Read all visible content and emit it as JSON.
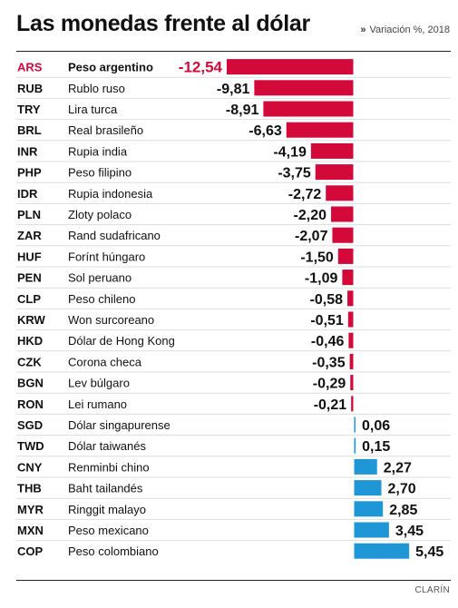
{
  "header": {
    "title": "Las monedas frente al dólar",
    "subtitle_mark": "»",
    "subtitle": "Variación %, 2018"
  },
  "footer": {
    "source": "CLARÍN"
  },
  "colors": {
    "highlight": "#d3093a",
    "negative": "#d3093a",
    "positive": "#1f96d6",
    "divider": "#dddddd",
    "text": "#111111"
  },
  "chart_data": {
    "type": "bar",
    "orientation": "horizontal",
    "title": "Las monedas frente al dólar",
    "subtitle": "Variación %, 2018",
    "highlight_code": "ARS",
    "categories": [
      "ARS",
      "RUB",
      "TRY",
      "BRL",
      "INR",
      "PHP",
      "IDR",
      "PLN",
      "ZAR",
      "HUF",
      "PEN",
      "CLP",
      "KRW",
      "HKD",
      "CZK",
      "BGN",
      "RON",
      "SGD",
      "TWD",
      "CNY",
      "THB",
      "MYR",
      "MXN",
      "COP"
    ],
    "names": [
      "Peso argentino",
      "Rublo ruso",
      "Lira turca",
      "Real brasileño",
      "Rupia india",
      "Peso filipino",
      "Rupia indonesia",
      "Zloty polaco",
      "Rand sudafricano",
      "Forínt húngaro",
      "Sol peruano",
      "Peso chileno",
      "Won surcoreano",
      "Dólar de Hong Kong",
      "Corona checa",
      "Lev búlgaro",
      "Lei rumano",
      "Dólar singapurense",
      "Dólar taiwanés",
      "Renminbi chino",
      "Baht tailandés",
      "Ringgit malayo",
      "Peso mexicano",
      "Peso colombiano"
    ],
    "values": [
      -12.54,
      -9.81,
      -8.91,
      -6.63,
      -4.19,
      -3.75,
      -2.72,
      -2.2,
      -2.07,
      -1.5,
      -1.09,
      -0.58,
      -0.51,
      -0.46,
      -0.35,
      -0.29,
      -0.21,
      0.06,
      0.15,
      2.27,
      2.7,
      2.85,
      3.45,
      5.45
    ],
    "value_labels": [
      "-12,54",
      "-9,81",
      "-8,91",
      "-6,63",
      "-4,19",
      "-3,75",
      "-2,72",
      "-2,20",
      "-2,07",
      "-1,50",
      "-1,09",
      "-0,58",
      "-0,51",
      "-0,46",
      "-0,35",
      "-0,29",
      "-0,21",
      "0,06",
      "0,15",
      "2,27",
      "2,70",
      "2,85",
      "3,45",
      "5,45"
    ],
    "xlim": [
      -12.54,
      5.45
    ],
    "grid": false,
    "legend": "none"
  }
}
